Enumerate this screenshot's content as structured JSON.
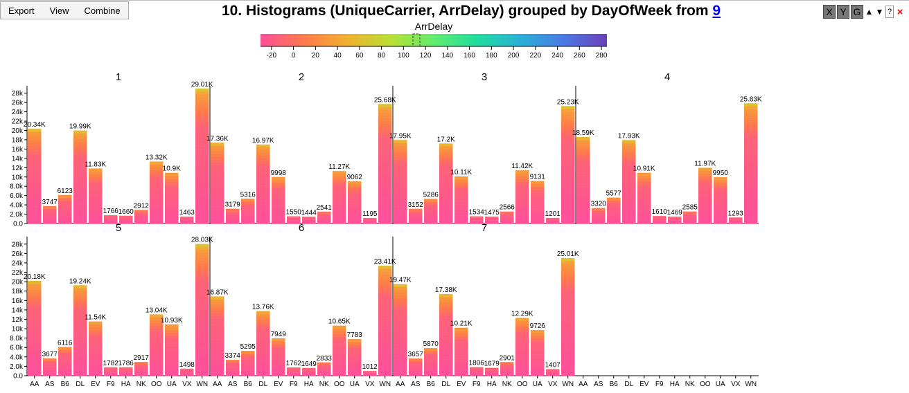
{
  "menu": [
    "Export",
    "View",
    "Combine"
  ],
  "title_main": "10. Histograms (UniqueCarrier, ArrDelay) grouped by DayOfWeek from ",
  "title_link": "9",
  "controls": {
    "x": "X",
    "y": "Y",
    "g": "G",
    "up": "▲",
    "down": "▼",
    "help": "?",
    "close": "×"
  },
  "legend": {
    "title": "ArrDelay",
    "ticks": [
      -20,
      0,
      20,
      40,
      60,
      80,
      100,
      120,
      140,
      160,
      180,
      200,
      220,
      240,
      260,
      280
    ],
    "min": -30,
    "max": 285,
    "colors": [
      "#ff4f9b",
      "#ff7a4b",
      "#f0b030",
      "#b8e034",
      "#62ec6e",
      "#20dc9e",
      "#2ab0d8",
      "#4a7ae4",
      "#6a40b8"
    ]
  },
  "chart_data": {
    "type": "bar",
    "group_by": "DayOfWeek",
    "categories": [
      "AA",
      "AS",
      "B6",
      "DL",
      "EV",
      "F9",
      "HA",
      "NK",
      "OO",
      "UA",
      "VX",
      "WN"
    ],
    "ylim": [
      0,
      29000
    ],
    "yticks": [
      "0.0",
      "2.0k",
      "4.0k",
      "6.0k",
      "8.0k",
      "10k",
      "12k",
      "14k",
      "16k",
      "18k",
      "20k",
      "22k",
      "24k",
      "26k",
      "28k"
    ],
    "panels": [
      {
        "name": "1",
        "values": [
          20340,
          3747,
          6123,
          19990,
          11830,
          1766,
          1660,
          2912,
          13320,
          10900,
          1463,
          29010
        ],
        "labels": [
          "20.34K",
          "3747",
          "6123",
          "19.99K",
          "11.83K",
          "1766",
          "1660",
          "2912",
          "13.32K",
          "10.9K",
          "1463",
          "29.01K"
        ]
      },
      {
        "name": "2",
        "values": [
          17360,
          3179,
          5316,
          16970,
          9998,
          1550,
          1444,
          2541,
          11270,
          9062,
          1195,
          25680
        ],
        "labels": [
          "17.36K",
          "3179",
          "5316",
          "16.97K",
          "9998",
          "1550",
          "1444",
          "2541",
          "11.27K",
          "9062",
          "1195",
          "25.68K"
        ]
      },
      {
        "name": "3",
        "values": [
          17950,
          3152,
          5286,
          17200,
          10110,
          1534,
          1475,
          2566,
          11420,
          9131,
          1201,
          25230
        ],
        "labels": [
          "17.95K",
          "3152",
          "5286",
          "17.2K",
          "10.11K",
          "1534",
          "1475",
          "2566",
          "11.42K",
          "9131",
          "1201",
          "25.23K"
        ]
      },
      {
        "name": "4",
        "values": [
          18590,
          3320,
          5577,
          17930,
          10910,
          1610,
          1469,
          2585,
          11970,
          9950,
          1293,
          25830
        ],
        "labels": [
          "18.59K",
          "3320",
          "5577",
          "17.93K",
          "10.91K",
          "1610",
          "1469",
          "2585",
          "11.97K",
          "9950",
          "1293",
          "25.83K"
        ]
      },
      {
        "name": "5",
        "values": [
          20180,
          3677,
          6116,
          19240,
          11540,
          1782,
          1786,
          2917,
          13040,
          10930,
          1498,
          28030
        ],
        "labels": [
          "20.18K",
          "3677",
          "6116",
          "19.24K",
          "11.54K",
          "1782",
          "1786",
          "2917",
          "13.04K",
          "10.93K",
          "1498",
          "28.03K"
        ]
      },
      {
        "name": "6",
        "values": [
          16870,
          3374,
          5295,
          13760,
          7949,
          1762,
          1649,
          2833,
          10650,
          7783,
          1012,
          23410
        ],
        "labels": [
          "16.87K",
          "3374",
          "5295",
          "13.76K",
          "7949",
          "1762",
          "1649",
          "2833",
          "10.65K",
          "7783",
          "1012",
          "23.41K"
        ]
      },
      {
        "name": "7",
        "values": [
          19470,
          3657,
          5870,
          17380,
          10210,
          1806,
          1679,
          2901,
          12290,
          9726,
          1407,
          25010
        ],
        "labels": [
          "19.47K",
          "3657",
          "5870",
          "17.38K",
          "10.21K",
          "1806",
          "1679",
          "2901",
          "12.29K",
          "9726",
          "1407",
          "25.01K"
        ]
      }
    ]
  }
}
